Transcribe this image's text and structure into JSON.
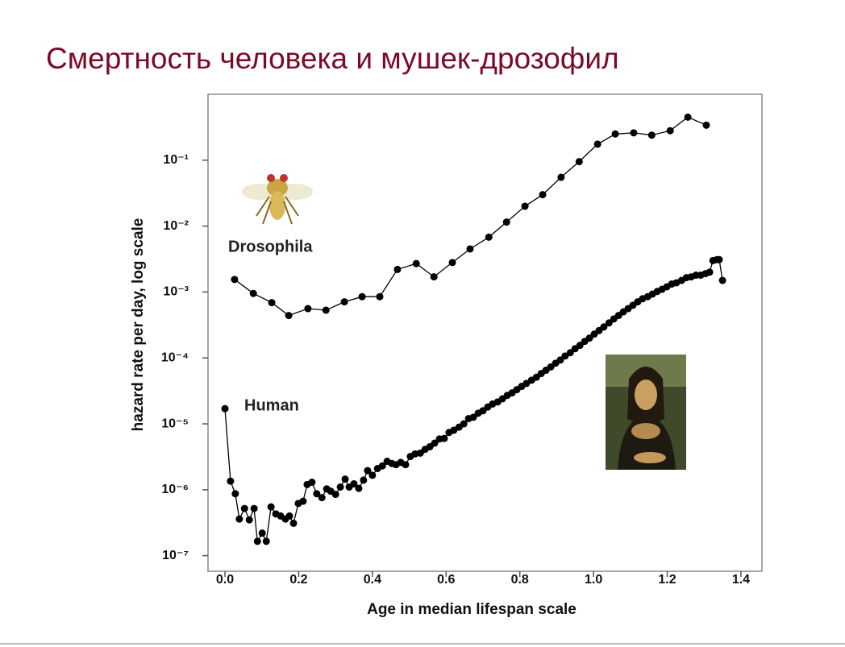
{
  "slide": {
    "title": "Смертность человека и мушек-дрозофил"
  },
  "chart_data": {
    "type": "line",
    "log_y": true,
    "x_label": "Age in median lifespan scale",
    "y_label": "hazard rate per day, log scale",
    "xlim": [
      -0.046,
      1.457
    ],
    "ylim": [
      5.8e-08,
      1
    ],
    "xticks": [
      {
        "value": 0,
        "label": "0.0"
      },
      0.2,
      0.4,
      0.6,
      0.8,
      {
        "value": 1,
        "label": "1.0"
      },
      1.2,
      1.4
    ],
    "yticks": [
      {
        "value": 1e-07,
        "label": "10⁻⁷"
      },
      {
        "value": 1e-06,
        "label": "10⁻⁶"
      },
      {
        "value": 1e-05,
        "label": "10⁻⁵"
      },
      {
        "value": 0.0001,
        "label": "10⁻⁴"
      },
      {
        "value": 0.001,
        "label": "10⁻³"
      },
      {
        "value": 0.01,
        "label": "10⁻²"
      },
      {
        "value": 0.1,
        "label": "10⁻¹"
      }
    ],
    "series": [
      {
        "name": "Drosophila",
        "color": "#000000",
        "x": [
          0.026,
          0.077,
          0.127,
          0.173,
          0.225,
          0.274,
          0.324,
          0.372,
          0.42,
          0.468,
          0.519,
          0.567,
          0.617,
          0.665,
          0.716,
          0.764,
          0.814,
          0.862,
          0.912,
          0.961,
          1.011,
          1.059,
          1.109,
          1.158,
          1.208,
          1.256,
          1.306
        ],
        "values": [
          0.00155,
          0.00095,
          0.00069,
          0.00044,
          0.00056,
          0.00053,
          0.00071,
          0.00085,
          0.00085,
          0.0022,
          0.0027,
          0.0017,
          0.0028,
          0.0045,
          0.0068,
          0.0115,
          0.02,
          0.03,
          0.055,
          0.095,
          0.175,
          0.25,
          0.26,
          0.24,
          0.28,
          0.45,
          0.34
        ]
      },
      {
        "name": "Human",
        "color": "#000000",
        "x": [
          0,
          0.015,
          0.028,
          0.039,
          0.053,
          0.066,
          0.079,
          0.088,
          0.101,
          0.112,
          0.125,
          0.138,
          0.151,
          0.164,
          0.175,
          0.186,
          0.199,
          0.212,
          0.223,
          0.236,
          0.249,
          0.263,
          0.276,
          0.287,
          0.3,
          0.313,
          0.326,
          0.337,
          0.35,
          0.363,
          0.376,
          0.387,
          0.4,
          0.414,
          0.427,
          0.44,
          0.453,
          0.464,
          0.477,
          0.49,
          0.503,
          0.516,
          0.53,
          0.543,
          0.556,
          0.569,
          0.582,
          0.595,
          0.608,
          0.621,
          0.635,
          0.648,
          0.661,
          0.674,
          0.687,
          0.7,
          0.713,
          0.726,
          0.74,
          0.753,
          0.766,
          0.779,
          0.792,
          0.805,
          0.818,
          0.832,
          0.845,
          0.858,
          0.871,
          0.884,
          0.897,
          0.91,
          0.923,
          0.937,
          0.95,
          0.963,
          0.976,
          0.989,
          1.002,
          1.015,
          1.028,
          1.042,
          1.055,
          1.068,
          1.081,
          1.094,
          1.107,
          1.12,
          1.133,
          1.147,
          1.16,
          1.173,
          1.186,
          1.199,
          1.212,
          1.225,
          1.239,
          1.252,
          1.265,
          1.278,
          1.291,
          1.304,
          1.315,
          1.324,
          1.335,
          1.341,
          1.35
        ],
        "values": [
          1.7e-05,
          1.35e-06,
          8.7e-07,
          3.6e-07,
          5.2e-07,
          3.5e-07,
          5.2e-07,
          1.65e-07,
          2.2e-07,
          1.65e-07,
          5.5e-07,
          4.3e-07,
          4e-07,
          3.6e-07,
          4e-07,
          3.1e-07,
          6.2e-07,
          6.7e-07,
          1.2e-06,
          1.3e-06,
          8.7e-07,
          7.6e-07,
          1.03e-06,
          9.5e-07,
          8.5e-07,
          1.1e-06,
          1.45e-06,
          1.1e-06,
          1.23e-06,
          1.05e-06,
          1.4e-06,
          1.95e-06,
          1.66e-06,
          2.1e-06,
          2.3e-06,
          2.7e-06,
          2.5e-06,
          2.4e-06,
          2.6e-06,
          2.4e-06,
          3.2e-06,
          3.5e-06,
          3.6e-06,
          4.1e-06,
          4.5e-06,
          5.1e-06,
          5.9e-06,
          6e-06,
          7.4e-06,
          8e-06,
          8.9e-06,
          1e-05,
          1.2e-05,
          1.26e-05,
          1.45e-05,
          1.58e-05,
          1.8e-05,
          2e-05,
          2.15e-05,
          2.4e-05,
          2.7e-05,
          2.95e-05,
          3.3e-05,
          3.7e-05,
          4.1e-05,
          4.6e-05,
          5.1e-05,
          5.8e-05,
          6.5e-05,
          7.3e-05,
          8.3e-05,
          9.3e-05,
          0.000107,
          0.00012,
          0.000138,
          0.000155,
          0.000178,
          0.0002,
          0.00023,
          0.00026,
          0.000295,
          0.00034,
          0.00039,
          0.00044,
          0.0005,
          0.00056,
          0.00063,
          0.00071,
          0.00079,
          0.00085,
          0.00093,
          0.00102,
          0.0011,
          0.0012,
          0.00132,
          0.00138,
          0.0015,
          0.00165,
          0.0017,
          0.0018,
          0.0018,
          0.0019,
          0.002,
          0.003,
          0.0031,
          0.0031,
          0.0015
        ]
      }
    ]
  }
}
